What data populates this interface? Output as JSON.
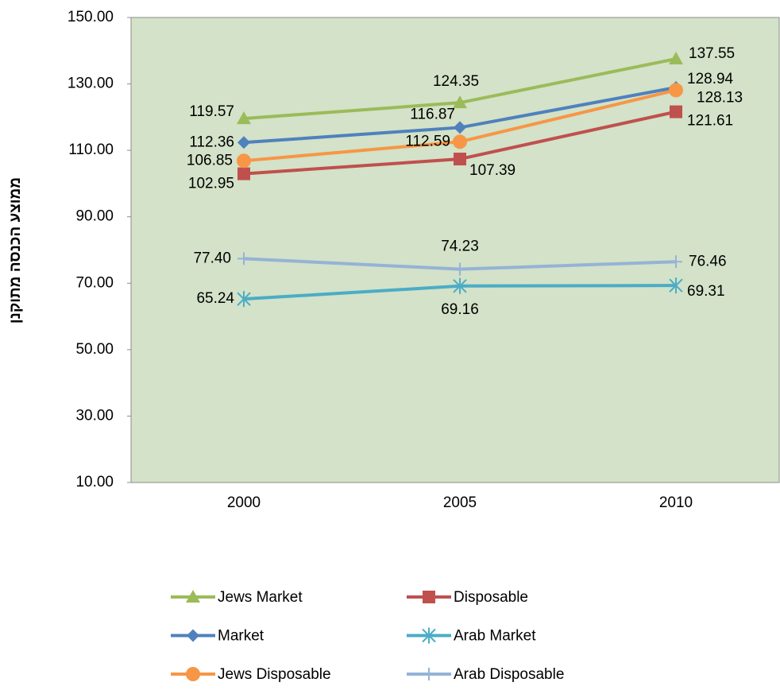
{
  "chart_data": {
    "type": "line",
    "y_label": "ממוצע הכנסה מתוקנן",
    "categories": [
      "2000",
      "2005",
      "2010"
    ],
    "ylim": [
      10,
      150
    ],
    "yticks": [
      {
        "value": 10,
        "label": "10.00"
      },
      {
        "value": 30,
        "label": "30.00"
      },
      {
        "value": 50,
        "label": "50.00"
      },
      {
        "value": 70,
        "label": "70.00"
      },
      {
        "value": 90,
        "label": "90.00"
      },
      {
        "value": 110,
        "label": "110.00"
      },
      {
        "value": 130,
        "label": "130.00"
      },
      {
        "value": 150,
        "label": "150.00"
      }
    ],
    "series": [
      {
        "name": "Jews Market",
        "color": "#9bbb59",
        "marker": "triangle",
        "values": [
          119.57,
          124.35,
          137.55
        ],
        "value_labels": [
          "119.57",
          "124.35",
          "137.55"
        ]
      },
      {
        "name": "Disposable",
        "color": "#c0504d",
        "marker": "square",
        "values": [
          102.95,
          107.39,
          121.61
        ],
        "value_labels": [
          "102.95",
          "107.39",
          "121.61"
        ]
      },
      {
        "name": "Market",
        "color": "#4f81bd",
        "marker": "diamond",
        "values": [
          112.36,
          116.87,
          128.94
        ],
        "value_labels": [
          "112.36",
          "116.87",
          "128.94"
        ]
      },
      {
        "name": "Arab Market",
        "color": "#4bacc6",
        "marker": "asterisk",
        "values": [
          65.24,
          69.16,
          69.31
        ],
        "value_labels": [
          "65.24",
          "69.16",
          "69.31"
        ]
      },
      {
        "name": "Jews Disposable",
        "color": "#f79646",
        "marker": "circle",
        "values": [
          106.85,
          112.59,
          128.13
        ],
        "value_labels": [
          "106.85",
          "112.59",
          "128.13"
        ]
      },
      {
        "name": "Arab Disposable",
        "color": "#95b3d7",
        "marker": "plus",
        "values": [
          77.4,
          74.23,
          76.46
        ],
        "value_labels": [
          "77.40",
          "74.23",
          "76.46"
        ]
      }
    ]
  }
}
